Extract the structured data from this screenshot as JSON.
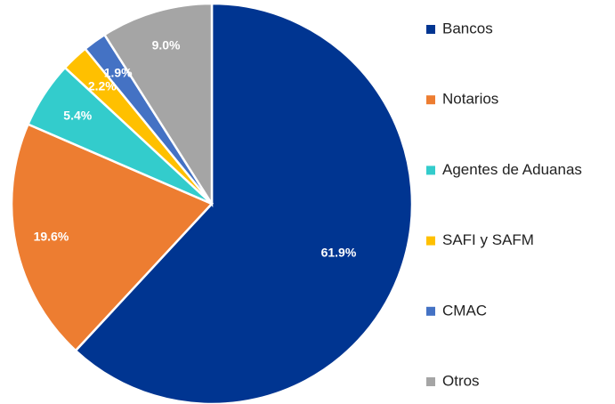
{
  "chart_data": {
    "type": "pie",
    "categories": [
      "Bancos",
      "Notarios",
      "Agentes de Aduanas",
      "SAFI y SAFM",
      "CMAC",
      "Otros"
    ],
    "values": [
      61.9,
      19.6,
      5.4,
      2.2,
      1.9,
      9.0
    ],
    "value_labels": [
      "61.9%",
      "19.6%",
      "5.4%",
      "2.2%",
      "1.9%",
      "9.0%"
    ],
    "colors": [
      "#003591",
      "#ed7d31",
      "#33cccc",
      "#ffc000",
      "#4472c4",
      "#a5a5a5"
    ],
    "legend": "right"
  }
}
